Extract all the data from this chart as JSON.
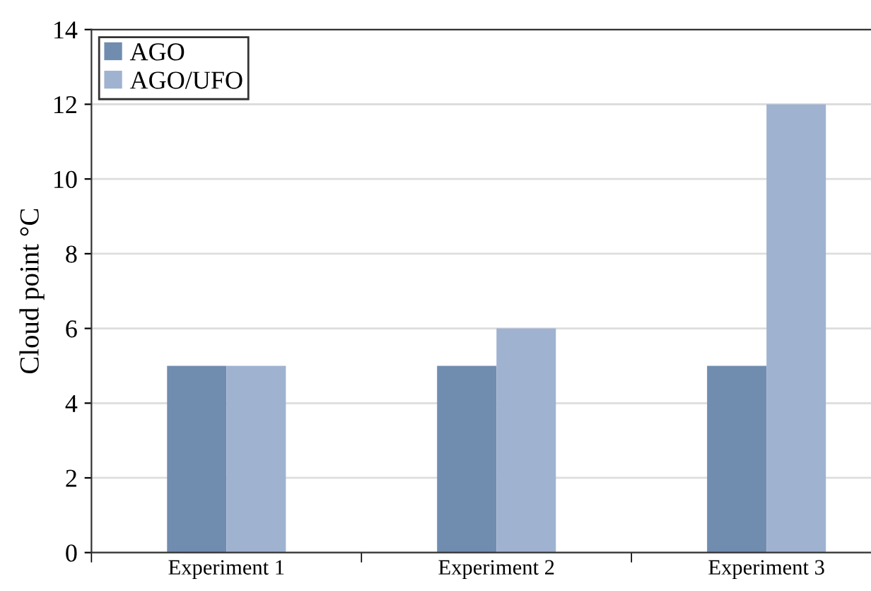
{
  "chart_data": {
    "type": "bar",
    "ylabel": "Cloud point °C",
    "categories": [
      "Experiment 1",
      "Experiment 2",
      "Experiment 3"
    ],
    "series": [
      {
        "name": "AGO",
        "color": "#708db0",
        "values": [
          5,
          5,
          5
        ]
      },
      {
        "name": "AGO/UFO",
        "color": "#9fb2d0",
        "values": [
          5,
          6,
          12
        ]
      }
    ],
    "ylim": [
      0,
      14
    ],
    "yticks": [
      0,
      2,
      4,
      6,
      8,
      10,
      12,
      14
    ],
    "grid": "y",
    "legend": "top left"
  }
}
